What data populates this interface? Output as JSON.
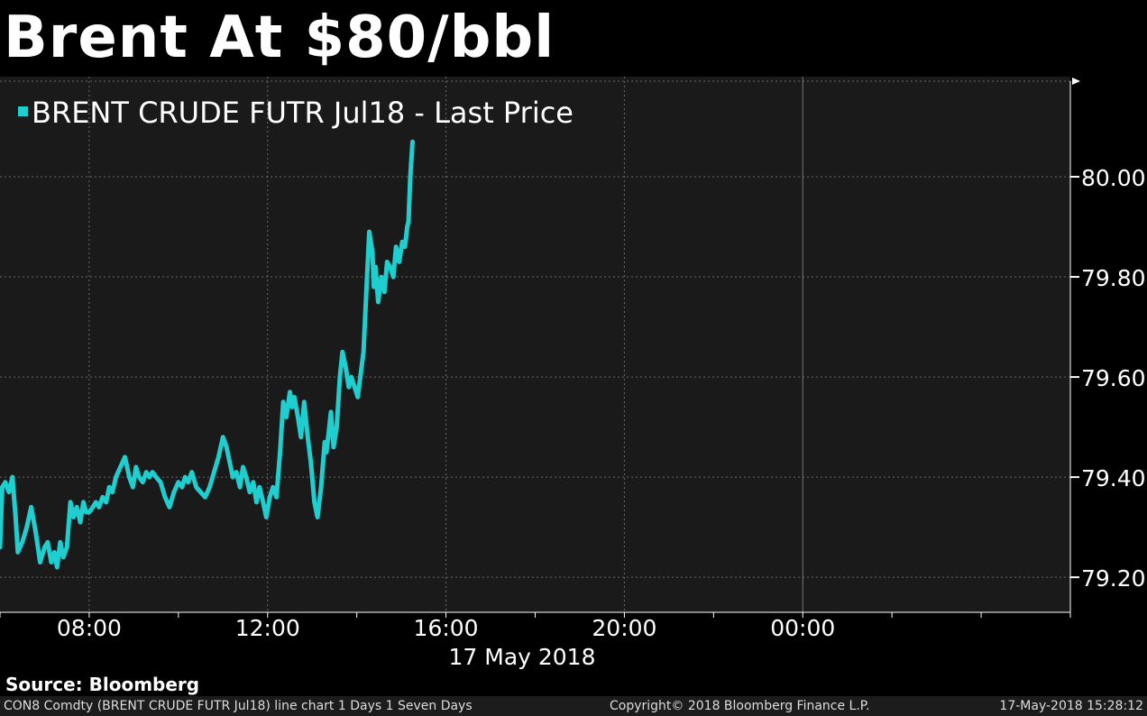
{
  "header": {
    "title": "Brent At $80/bbl"
  },
  "chart_data": {
    "type": "line",
    "legend_label": "BRENT CRUDE FUTR Jul18 - Last Price",
    "legend_position": "top-left",
    "x_date_label": "17 May 2018",
    "x_ticks": [
      {
        "label": "08:00",
        "hour": 8
      },
      {
        "label": "12:00",
        "hour": 12
      },
      {
        "label": "16:00",
        "hour": 16
      },
      {
        "label": "20:00",
        "hour": 20
      },
      {
        "label": "00:00",
        "hour": 24
      }
    ],
    "xlim": [
      6,
      30
    ],
    "y_ticks": [
      79.2,
      79.4,
      79.6,
      79.8,
      80.0
    ],
    "y_tick_labels": [
      "79.20",
      "79.40",
      "79.60",
      "79.80",
      "80.00"
    ],
    "ylim": [
      79.13,
      80.2
    ],
    "grid": true,
    "y_axis_position": "right",
    "series": [
      {
        "color": "#1fcfcf",
        "x": [
          6.0,
          6.05,
          6.12,
          6.2,
          6.28,
          6.35,
          6.4,
          6.5,
          6.6,
          6.7,
          6.8,
          6.9,
          7.0,
          7.07,
          7.15,
          7.22,
          7.28,
          7.35,
          7.42,
          7.5,
          7.58,
          7.65,
          7.72,
          7.8,
          7.87,
          7.93,
          8.0,
          8.08,
          8.15,
          8.22,
          8.3,
          8.38,
          8.45,
          8.52,
          8.6,
          8.7,
          8.8,
          8.9,
          8.98,
          9.05,
          9.12,
          9.2,
          9.28,
          9.35,
          9.42,
          9.5,
          9.6,
          9.7,
          9.8,
          9.9,
          10.0,
          10.08,
          10.15,
          10.22,
          10.3,
          10.4,
          10.5,
          10.6,
          10.7,
          10.8,
          10.9,
          11.0,
          11.08,
          11.15,
          11.22,
          11.3,
          11.38,
          11.45,
          11.52,
          11.6,
          11.68,
          11.75,
          11.82,
          11.9,
          11.97,
          12.05,
          12.12,
          12.2,
          12.28,
          12.35,
          12.42,
          12.5,
          12.55,
          12.6,
          12.68,
          12.75,
          12.82,
          12.9,
          12.97,
          13.05,
          13.12,
          13.2,
          13.28,
          13.32,
          13.36,
          13.42,
          13.48,
          13.55,
          13.62,
          13.68,
          13.75,
          13.82,
          13.88,
          13.95,
          14.02,
          14.08,
          14.15,
          14.22,
          14.28,
          14.35,
          14.38,
          14.42,
          14.48,
          14.55,
          14.62,
          14.68,
          14.75,
          14.82,
          14.88,
          14.95,
          15.02,
          15.08,
          15.13,
          15.16,
          15.2,
          15.25
        ],
        "y": [
          79.26,
          79.38,
          79.39,
          79.37,
          79.4,
          79.32,
          79.25,
          79.27,
          79.3,
          79.34,
          79.29,
          79.23,
          79.26,
          79.27,
          79.23,
          79.25,
          79.22,
          79.27,
          79.24,
          79.26,
          79.35,
          79.32,
          79.34,
          79.31,
          79.35,
          79.33,
          79.33,
          79.34,
          79.35,
          79.34,
          79.36,
          79.35,
          79.38,
          79.37,
          79.4,
          79.42,
          79.44,
          79.4,
          79.38,
          79.42,
          79.4,
          79.39,
          79.41,
          79.4,
          79.41,
          79.4,
          79.39,
          79.36,
          79.34,
          79.37,
          79.39,
          79.38,
          79.4,
          79.39,
          79.41,
          79.38,
          79.37,
          79.36,
          79.38,
          79.41,
          79.44,
          79.48,
          79.46,
          79.43,
          79.4,
          79.41,
          79.38,
          79.42,
          79.4,
          79.37,
          79.39,
          79.35,
          79.38,
          79.35,
          79.32,
          79.36,
          79.38,
          79.36,
          79.45,
          79.55,
          79.52,
          79.57,
          79.54,
          79.56,
          79.52,
          79.48,
          79.55,
          79.48,
          79.43,
          79.35,
          79.32,
          79.38,
          79.47,
          79.45,
          79.48,
          79.53,
          79.46,
          79.5,
          79.6,
          79.65,
          79.62,
          79.58,
          79.6,
          79.58,
          79.56,
          79.6,
          79.65,
          79.78,
          79.89,
          79.85,
          79.78,
          79.82,
          79.75,
          79.8,
          79.77,
          79.83,
          79.82,
          79.8,
          79.86,
          79.83,
          79.87,
          79.86,
          79.9,
          79.91,
          80.0,
          80.07
        ]
      }
    ]
  },
  "source": {
    "text": "Source: Bloomberg"
  },
  "footer": {
    "left": "CON8 Comdty (BRENT CRUDE FUTR  Jul18) line chart 1 Days 1 Seven Days",
    "middle": "Copyright© 2018 Bloomberg Finance L.P.",
    "right": "17-May-2018 15:28:12"
  }
}
